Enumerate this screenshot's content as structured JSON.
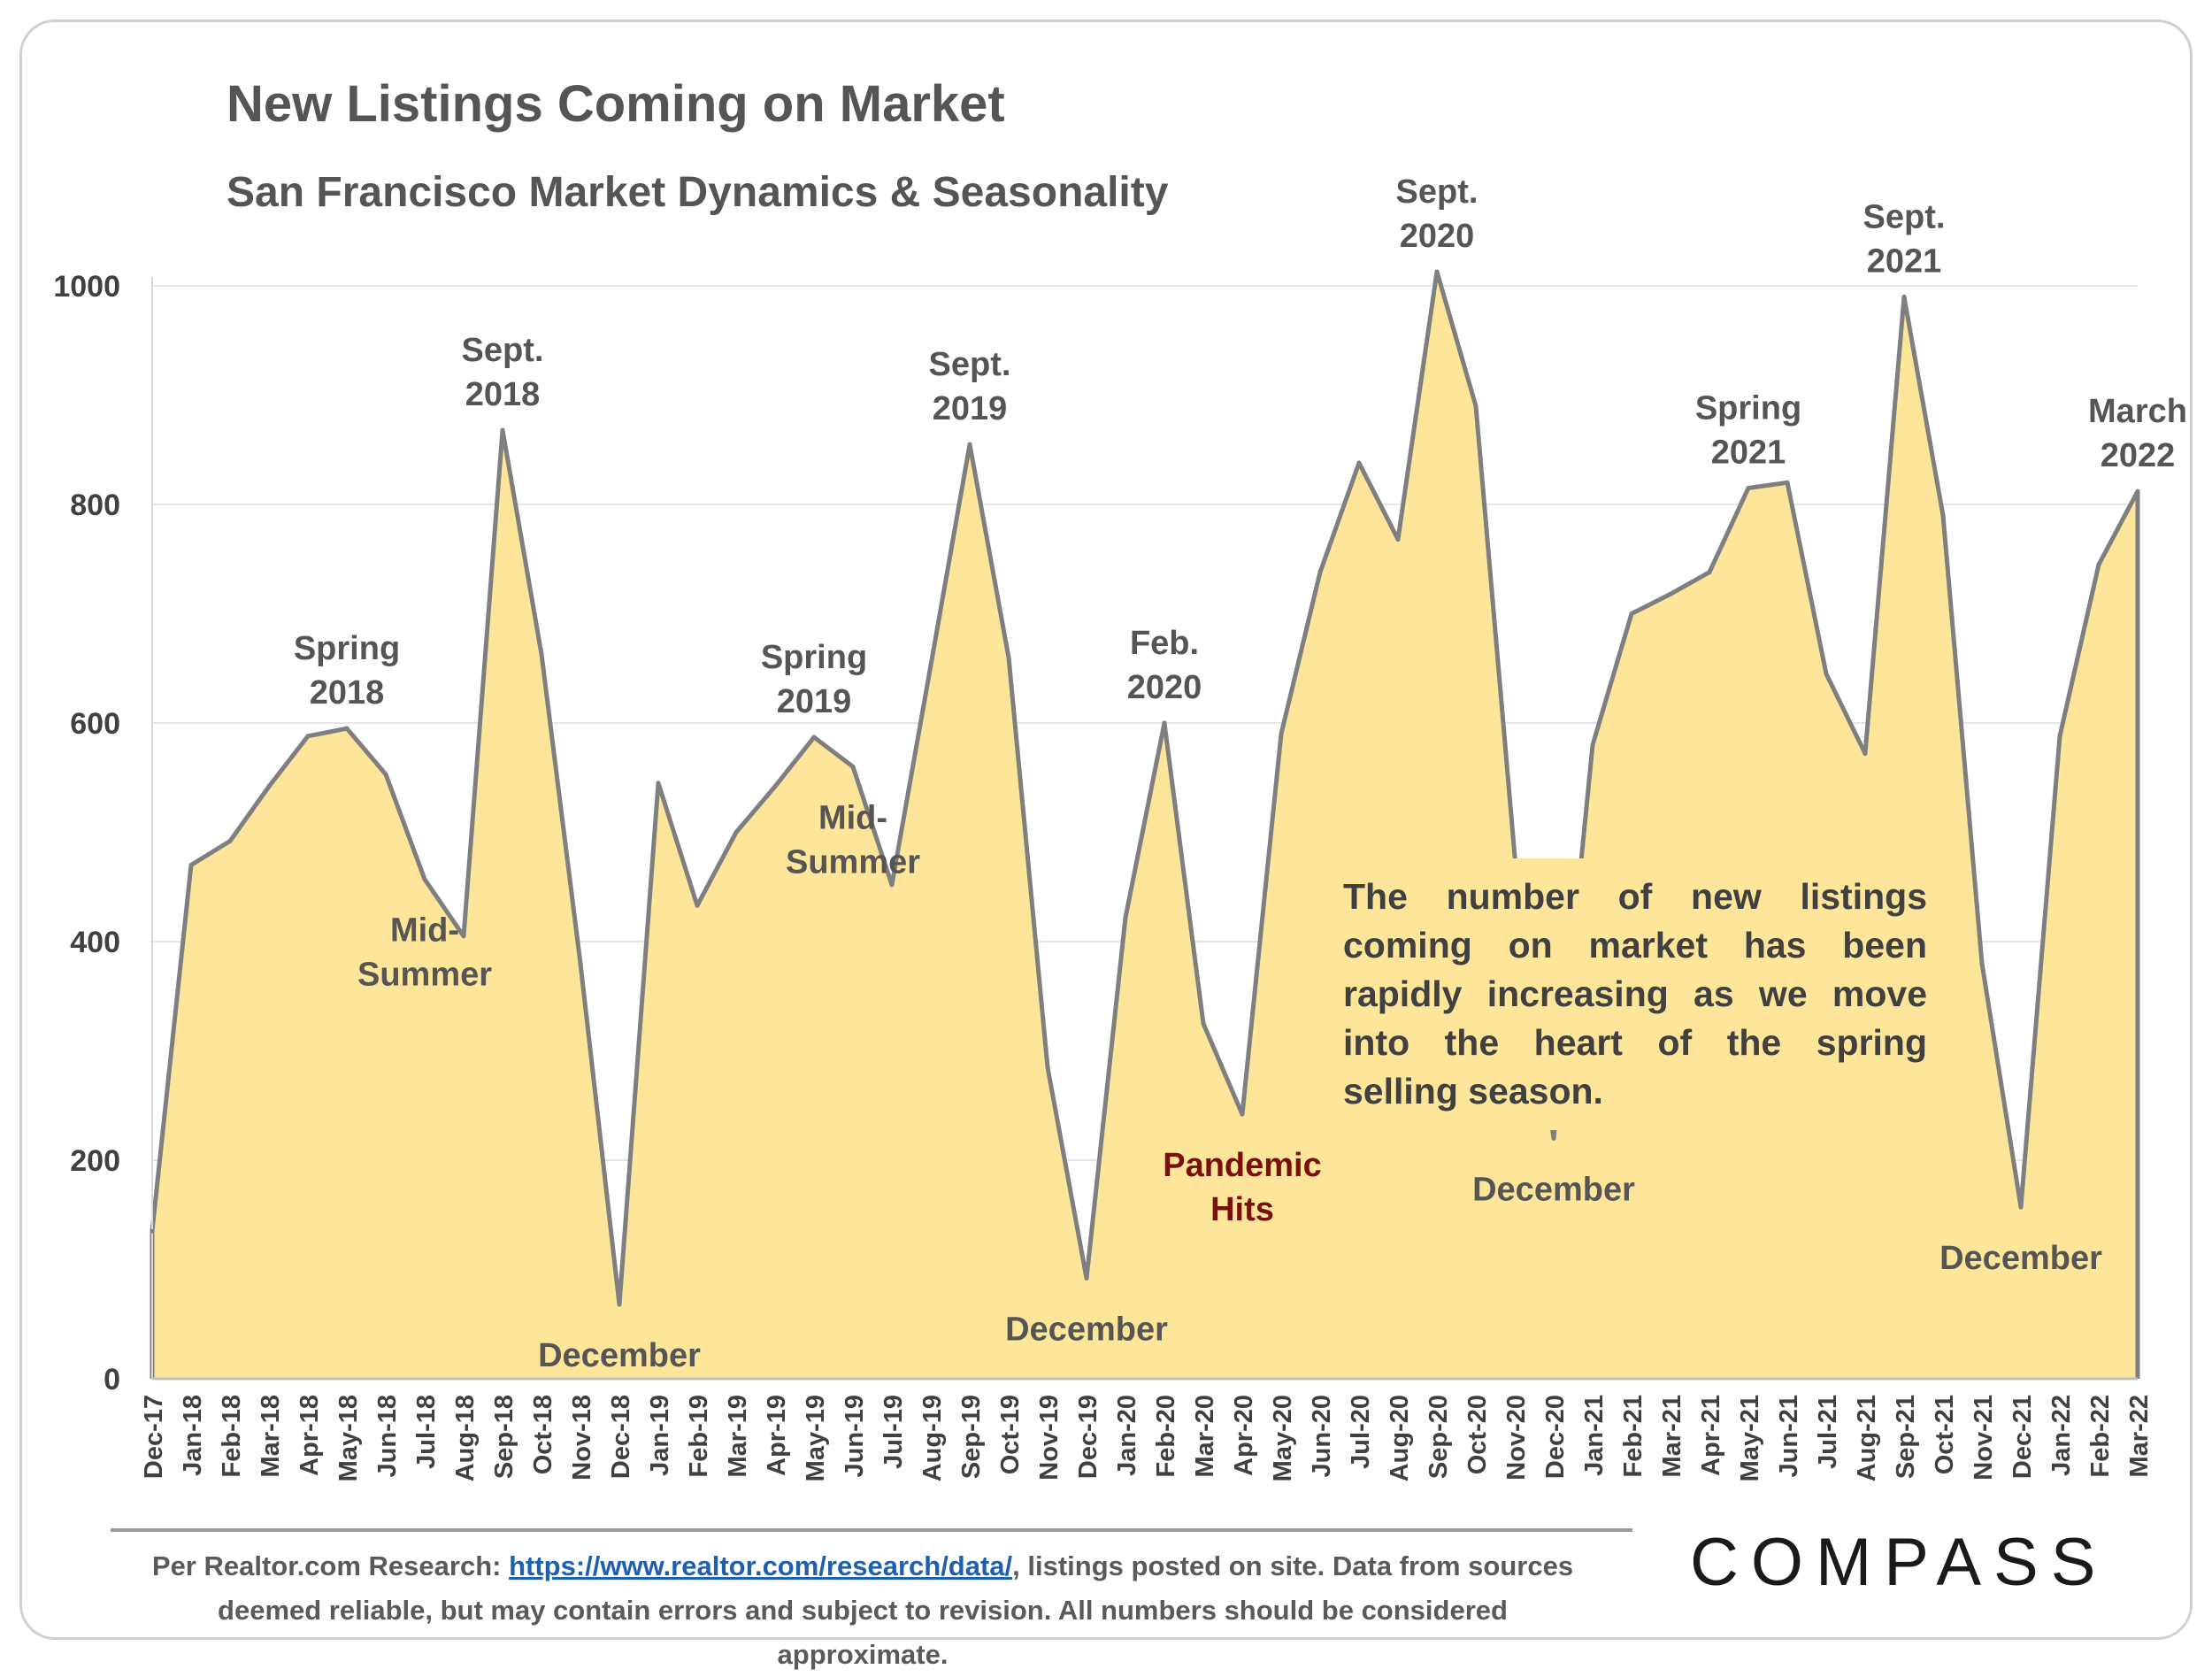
{
  "header": {
    "title": "New Listings Coming on Market",
    "subtitle": "San Francisco Market Dynamics & Seasonality"
  },
  "callout": {
    "text": "The number of new listings coming on market has been rapidly increasing as we move into the heart of the spring selling season."
  },
  "footer": {
    "prefix": "Per Realtor.com Research: ",
    "link_text": "https://www.realtor.com/research/data/",
    "suffix": ", listings posted on site. Data from sources deemed reliable, but may contain errors and subject to revision. All numbers should be considered approximate."
  },
  "logo": {
    "text": "COMPASS"
  },
  "colors": {
    "fill": "#fde59a",
    "line": "#7f7f7f",
    "pandemic": "#7b0f0f",
    "label": "#555555"
  },
  "chart_data": {
    "type": "area",
    "title": "New Listings Coming on Market",
    "subtitle": "San Francisco Market Dynamics & Seasonality",
    "ylim": [
      0,
      1000
    ],
    "yticks": [
      0,
      200,
      400,
      600,
      800,
      1000
    ],
    "grid": true,
    "categories": [
      "Dec-17",
      "Jan-18",
      "Feb-18",
      "Mar-18",
      "Apr-18",
      "May-18",
      "Jun-18",
      "Jul-18",
      "Aug-18",
      "Sep-18",
      "Oct-18",
      "Nov-18",
      "Dec-18",
      "Jan-19",
      "Feb-19",
      "Mar-19",
      "Apr-19",
      "May-19",
      "Jun-19",
      "Jul-19",
      "Aug-19",
      "Sep-19",
      "Oct-19",
      "Nov-19",
      "Dec-19",
      "Jan-20",
      "Feb-20",
      "Mar-20",
      "Apr-20",
      "May-20",
      "Jun-20",
      "Jul-20",
      "Aug-20",
      "Sep-20",
      "Oct-20",
      "Nov-20",
      "Dec-20",
      "Jan-21",
      "Feb-21",
      "Mar-21",
      "Apr-21",
      "May-21",
      "Jun-21",
      "Jul-21",
      "Aug-21",
      "Sep-21",
      "Oct-21",
      "Nov-21",
      "Dec-21",
      "Jan-22",
      "Feb-22",
      "Mar-22"
    ],
    "values": [
      135,
      470,
      492,
      542,
      588,
      595,
      553,
      457,
      405,
      868,
      663,
      380,
      68,
      545,
      433,
      500,
      542,
      587,
      560,
      452,
      653,
      855,
      660,
      285,
      92,
      422,
      600,
      325,
      242,
      590,
      738,
      838,
      768,
      1013,
      890,
      478,
      220,
      580,
      700,
      718,
      738,
      815,
      820,
      645,
      572,
      990,
      790,
      380,
      157,
      588,
      745,
      812
    ],
    "annotations": [
      {
        "index": 5,
        "lines": [
          "Spring",
          "2018"
        ],
        "pos": "above"
      },
      {
        "index": 9,
        "lines": [
          "Sept.",
          "2018"
        ],
        "pos": "above"
      },
      {
        "index": 7,
        "lines": [
          "Mid-",
          "Summer"
        ],
        "pos": "below"
      },
      {
        "index": 12,
        "lines": [
          "December"
        ],
        "pos": "below"
      },
      {
        "index": 17,
        "lines": [
          "Spring",
          "2019"
        ],
        "pos": "above"
      },
      {
        "index": 21,
        "lines": [
          "Sept.",
          "2019"
        ],
        "pos": "above"
      },
      {
        "index": 18,
        "lines": [
          "Mid-",
          "Summer"
        ],
        "pos": "below"
      },
      {
        "index": 24,
        "lines": [
          "December"
        ],
        "pos": "below"
      },
      {
        "index": 26,
        "lines": [
          "Feb.",
          "2020"
        ],
        "pos": "above"
      },
      {
        "index": 28,
        "lines": [
          "Pandemic",
          "Hits"
        ],
        "pos": "below",
        "color": "pandemic"
      },
      {
        "index": 33,
        "lines": [
          "Sept.",
          "2020"
        ],
        "pos": "above"
      },
      {
        "index": 36,
        "lines": [
          "December"
        ],
        "pos": "below"
      },
      {
        "index": 41,
        "lines": [
          "Spring",
          "2021"
        ],
        "pos": "above"
      },
      {
        "index": 45,
        "lines": [
          "Sept.",
          "2021"
        ],
        "pos": "above"
      },
      {
        "index": 48,
        "lines": [
          "December"
        ],
        "pos": "below"
      },
      {
        "index": 51,
        "lines": [
          "March",
          "2022"
        ],
        "pos": "above"
      }
    ]
  }
}
